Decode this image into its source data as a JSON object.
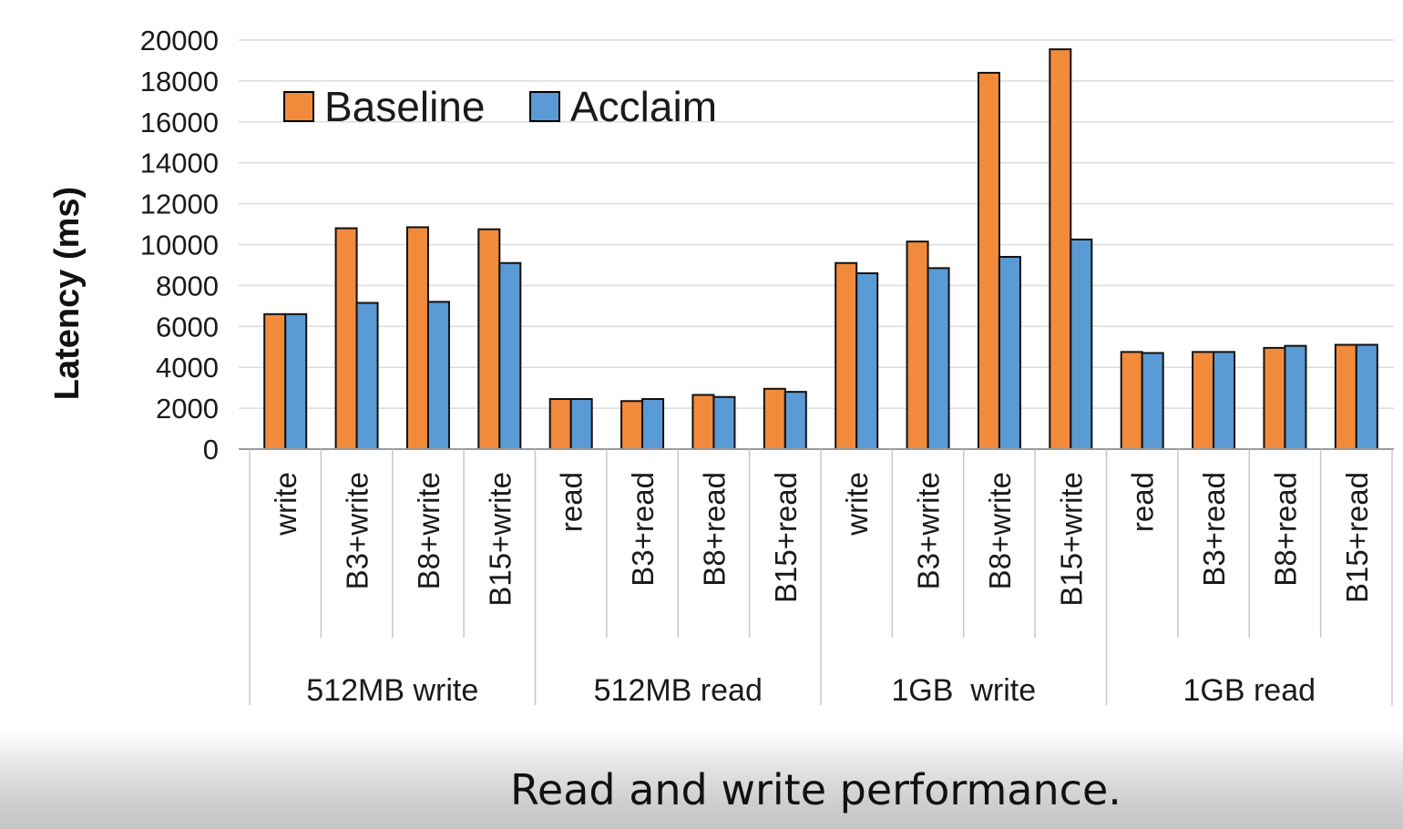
{
  "caption": "Read and write performance.",
  "chart_data": {
    "type": "bar",
    "title": "",
    "xlabel": "",
    "ylabel": "Latency (ms)",
    "ylim": [
      0,
      20000
    ],
    "yticks": [
      0,
      2000,
      4000,
      6000,
      8000,
      10000,
      12000,
      14000,
      16000,
      18000,
      20000
    ],
    "grid": true,
    "legend_position": "top-left",
    "groups": [
      "512MB write",
      "512MB read",
      "1GB  write",
      "1GB read"
    ],
    "categories": [
      "write",
      "B3+write",
      "B8+write",
      "B15+write",
      "read",
      "B3+read",
      "B8+read",
      "B15+read",
      "write",
      "B3+write",
      "B8+write",
      "B15+write",
      "read",
      "B3+read",
      "B8+read",
      "B15+read"
    ],
    "series": [
      {
        "name": "Baseline",
        "color": "#f28a3c",
        "values": [
          6600,
          10800,
          10850,
          10750,
          2450,
          2350,
          2650,
          2950,
          9100,
          10150,
          18400,
          19550,
          4750,
          4750,
          4950,
          5100
        ]
      },
      {
        "name": "Acclaim",
        "color": "#5b9bd5",
        "values": [
          6600,
          7150,
          7200,
          9100,
          2450,
          2450,
          2550,
          2800,
          8600,
          8850,
          9400,
          10250,
          4700,
          4750,
          5050,
          5100
        ]
      }
    ]
  }
}
